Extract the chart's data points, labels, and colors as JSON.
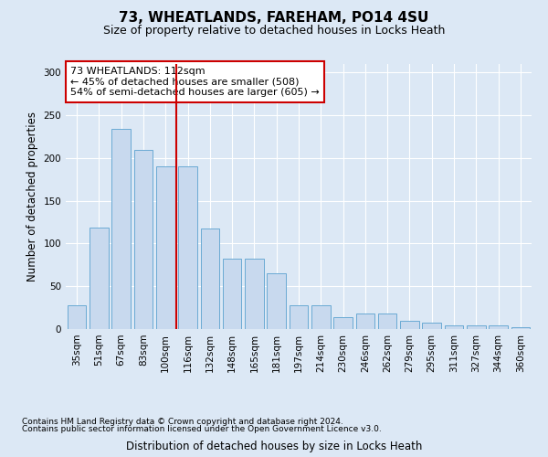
{
  "title": "73, WHEATLANDS, FAREHAM, PO14 4SU",
  "subtitle": "Size of property relative to detached houses in Locks Heath",
  "xlabel": "Distribution of detached houses by size in Locks Heath",
  "ylabel": "Number of detached properties",
  "categories": [
    "35sqm",
    "51sqm",
    "67sqm",
    "83sqm",
    "100sqm",
    "116sqm",
    "132sqm",
    "148sqm",
    "165sqm",
    "181sqm",
    "197sqm",
    "214sqm",
    "230sqm",
    "246sqm",
    "262sqm",
    "279sqm",
    "295sqm",
    "311sqm",
    "327sqm",
    "344sqm",
    "360sqm"
  ],
  "values": [
    28,
    119,
    234,
    210,
    190,
    190,
    118,
    82,
    82,
    65,
    28,
    28,
    14,
    18,
    18,
    10,
    7,
    4,
    4,
    4,
    2
  ],
  "bar_color": "#c8d9ee",
  "bar_edge_color": "#6aaad4",
  "annotation_text": "73 WHEATLANDS: 112sqm\n← 45% of detached houses are smaller (508)\n54% of semi-detached houses are larger (605) →",
  "annotation_box_color": "#ffffff",
  "annotation_box_edge": "#cc0000",
  "vline_color": "#cc0000",
  "vline_x": 4.5,
  "ylim": [
    0,
    310
  ],
  "yticks": [
    0,
    50,
    100,
    150,
    200,
    250,
    300
  ],
  "footnote1": "Contains HM Land Registry data © Crown copyright and database right 2024.",
  "footnote2": "Contains public sector information licensed under the Open Government Licence v3.0.",
  "background_color": "#dce8f5",
  "plot_bg_color": "#dce8f5",
  "title_fontsize": 11,
  "subtitle_fontsize": 9,
  "axis_label_fontsize": 8.5,
  "tick_fontsize": 7.5,
  "annotation_fontsize": 8,
  "footnote_fontsize": 6.5
}
